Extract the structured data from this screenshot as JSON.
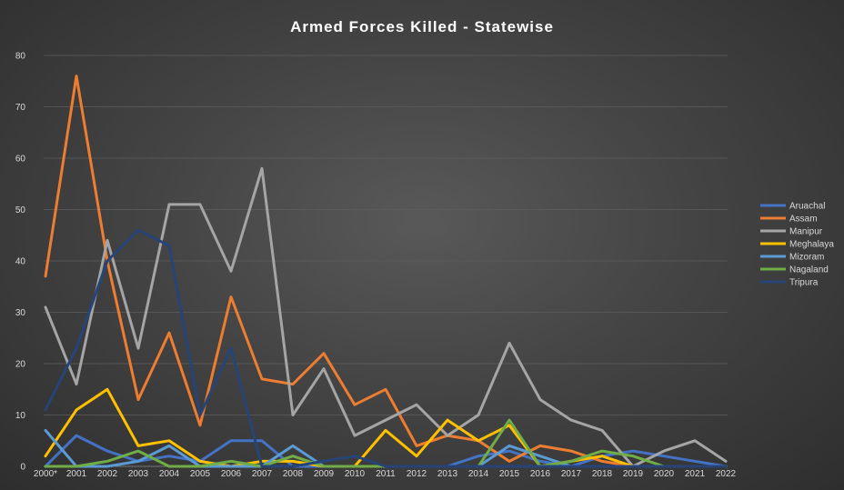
{
  "chart_data": {
    "type": "line",
    "title": "Armed Forces Killed - Statewise",
    "xlabel": "",
    "ylabel": "",
    "ylim": [
      0,
      80
    ],
    "yticks": [
      0,
      10,
      20,
      30,
      40,
      50,
      60,
      70,
      80
    ],
    "grid": true,
    "legend_position": "right",
    "categories": [
      "2000*",
      "2001",
      "2002",
      "2003",
      "2004",
      "2005",
      "2006",
      "2007",
      "2008",
      "2009",
      "2010",
      "2011",
      "2012",
      "2013",
      "2014",
      "2015",
      "2016",
      "2017",
      "2018",
      "2019",
      "2020",
      "2021",
      "2022"
    ],
    "series": [
      {
        "name": "Aruachal",
        "color": "#4472c4",
        "values": [
          0,
          6,
          3,
          1,
          2,
          1,
          5,
          5,
          0,
          0,
          0,
          0,
          0,
          0,
          2,
          3,
          1,
          0,
          2,
          3,
          2,
          1,
          0
        ]
      },
      {
        "name": "Assam",
        "color": "#ed7d31",
        "values": [
          37,
          76,
          40,
          13,
          26,
          8,
          33,
          17,
          16,
          22,
          12,
          15,
          4,
          6,
          5,
          1,
          4,
          3,
          1,
          0,
          0,
          0,
          0
        ]
      },
      {
        "name": "Manipur",
        "color": "#a5a5a5",
        "values": [
          31,
          16,
          44,
          23,
          51,
          51,
          38,
          58,
          10,
          19,
          6,
          9,
          12,
          6,
          10,
          24,
          13,
          9,
          7,
          0,
          3,
          5,
          1
        ]
      },
      {
        "name": "Meghalaya",
        "color": "#ffc000",
        "values": [
          2,
          11,
          15,
          4,
          5,
          1,
          0,
          1,
          1,
          0,
          0,
          7,
          2,
          9,
          5,
          8,
          0,
          1,
          2,
          0,
          0,
          0,
          0
        ]
      },
      {
        "name": "Mizoram",
        "color": "#5b9bd5",
        "values": [
          7,
          0,
          0,
          1,
          4,
          0,
          0,
          0,
          4,
          0,
          0,
          0,
          0,
          0,
          0,
          4,
          2,
          0,
          0,
          0,
          0,
          0,
          0
        ]
      },
      {
        "name": "Nagaland",
        "color": "#70ad47",
        "values": [
          0,
          0,
          1,
          3,
          0,
          0,
          1,
          0,
          2,
          0,
          0,
          0,
          0,
          0,
          0,
          9,
          0,
          1,
          3,
          2,
          0,
          0,
          0
        ]
      },
      {
        "name": "Tripura",
        "color": "#264478",
        "values": [
          11,
          23,
          40,
          46,
          43,
          10,
          23,
          0,
          0,
          1,
          2,
          0,
          0,
          0,
          0,
          0,
          0,
          0,
          0,
          0,
          0,
          0,
          0
        ]
      }
    ]
  }
}
